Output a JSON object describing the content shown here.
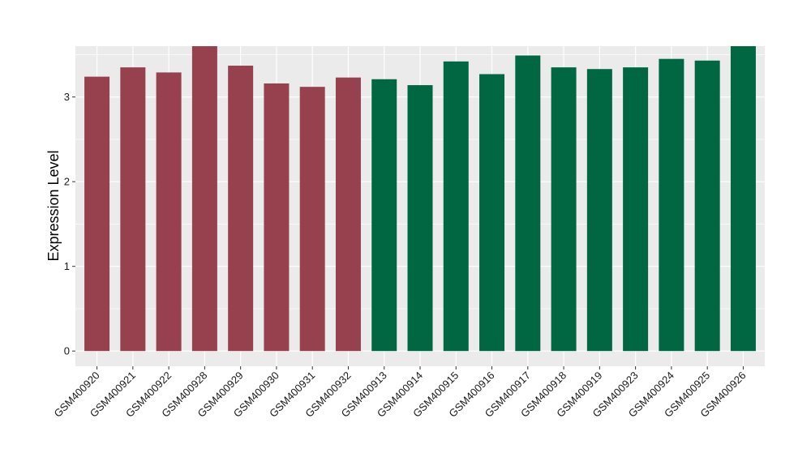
{
  "chart_data": {
    "type": "bar",
    "ylabel": "Expression Level",
    "xlabel": "",
    "ylim": [
      -0.18,
      3.6
    ],
    "yticks": [
      0,
      1,
      2,
      3
    ],
    "grid": true,
    "panel_background": "#ebebeb",
    "grid_color": "#ffffff",
    "categories": [
      "GSM400920",
      "GSM400921",
      "GSM400922",
      "GSM400928",
      "GSM400929",
      "GSM400930",
      "GSM400931",
      "GSM400932",
      "GSM400913",
      "GSM400914",
      "GSM400915",
      "GSM400916",
      "GSM400917",
      "GSM400918",
      "GSM400919",
      "GSM400923",
      "GSM400924",
      "GSM400925",
      "GSM400926"
    ],
    "values": [
      3.24,
      3.35,
      3.29,
      3.6,
      3.37,
      3.16,
      3.12,
      3.23,
      3.21,
      3.14,
      3.42,
      3.27,
      3.49,
      3.35,
      3.33,
      3.35,
      3.45,
      3.43,
      3.6
    ],
    "colors": [
      "#97414f",
      "#97414f",
      "#97414f",
      "#97414f",
      "#97414f",
      "#97414f",
      "#97414f",
      "#97414f",
      "#006743",
      "#006743",
      "#006743",
      "#006743",
      "#006743",
      "#006743",
      "#006743",
      "#006743",
      "#006743",
      "#006743",
      "#006743"
    ]
  }
}
